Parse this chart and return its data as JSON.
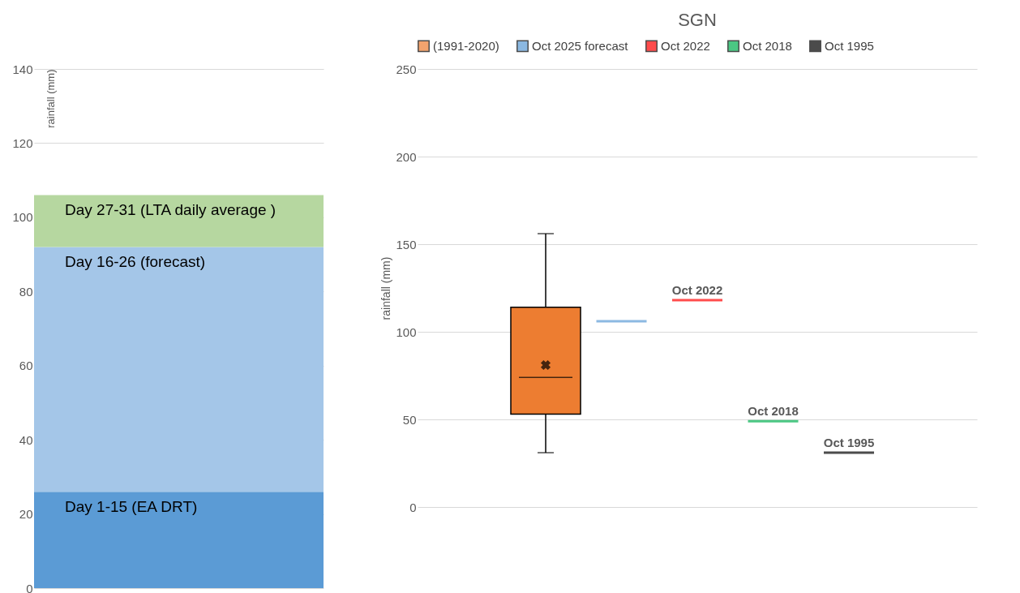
{
  "chart_data": [
    {
      "type": "bar",
      "stacked": true,
      "categories": [
        null
      ],
      "ylabel": "rainfall (mm)",
      "ylim": [
        0,
        140
      ],
      "yticks": [
        0,
        20,
        40,
        60,
        80,
        100,
        120,
        140
      ],
      "grid": "y",
      "tick_labels": "y",
      "legend": false,
      "series": [
        {
          "name": "Day 1-15 (EA DRT)",
          "color": "#5b9bd5",
          "values": [
            26
          ]
        },
        {
          "name": "Day 16-26 (forecast)",
          "color": "#a4c6e8",
          "values": [
            66
          ]
        },
        {
          "name": "Day 27-31 (LTA daily average )",
          "color": "#b6d7a0",
          "values": [
            14
          ]
        }
      ]
    },
    {
      "type": "box",
      "title": "SGN",
      "categories": [
        null
      ],
      "ylabel": "rainfall (mm)",
      "ylim": [
        0,
        250
      ],
      "yticks": [
        0,
        50,
        100,
        150,
        200,
        250
      ],
      "grid": "y",
      "tick_labels": "y",
      "legend": "top",
      "series": [
        {
          "name": "(1991-2020)",
          "color": "#ed7d31",
          "boxes": [
            {
              "low": 31,
              "q1": 53,
              "median": 74,
              "q3": 114,
              "high": 156,
              "mean": 81
            }
          ]
        },
        {
          "name": "Oct 2025 forecast",
          "color": "#5b9bd5",
          "boxes": [
            {
              "low": 106,
              "q1": 106,
              "median": 106,
              "q3": 106,
              "high": 106
            }
          ]
        },
        {
          "name": "Oct 2022",
          "color": "#ff0000",
          "boxes": [
            {
              "low": 118,
              "q1": 118,
              "median": 118,
              "q3": 118,
              "high": 118
            }
          ]
        },
        {
          "name": "Oct 2018",
          "color": "#00b050",
          "boxes": [
            {
              "low": 49,
              "q1": 49,
              "median": 49,
              "q3": 49,
              "high": 49
            }
          ]
        },
        {
          "name": "Oct 1995",
          "color": "#000000",
          "boxes": [
            {
              "low": 31,
              "q1": 31,
              "median": 31,
              "q3": 31,
              "high": 31
            }
          ]
        }
      ],
      "annotations": [
        {
          "text": "Oct 2022",
          "y": 118
        },
        {
          "text": "Oct 2018",
          "y": 49
        },
        {
          "text": "Oct 1995",
          "y": 31
        }
      ]
    }
  ]
}
